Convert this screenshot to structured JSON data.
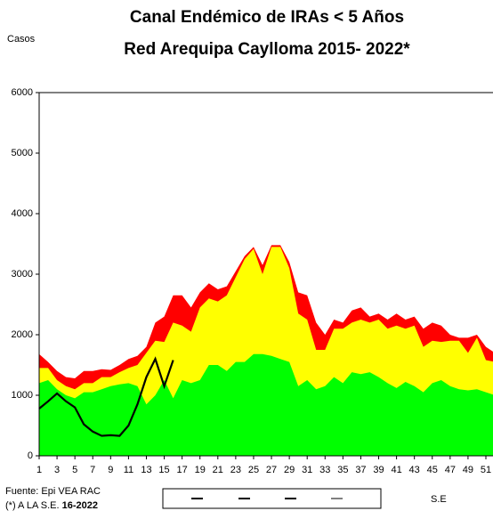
{
  "chart_data": {
    "type": "area",
    "title": [
      "Canal Endémico de IRAs < 5 Años",
      "Red Arequipa Caylloma 2015- 2022*"
    ],
    "y_label": "Casos",
    "x_label": "S.E",
    "source": "Fuente: Epi VEA RAC",
    "note": "(*) A LA S.E.",
    "note_bold": "16-2022",
    "x": [
      1,
      2,
      3,
      4,
      5,
      6,
      7,
      8,
      9,
      10,
      11,
      12,
      13,
      14,
      15,
      16,
      17,
      18,
      19,
      20,
      21,
      22,
      23,
      24,
      25,
      26,
      27,
      28,
      29,
      30,
      31,
      32,
      33,
      34,
      35,
      36,
      37,
      38,
      39,
      40,
      41,
      42,
      43,
      44,
      45,
      46,
      47,
      48,
      49,
      50,
      51,
      52
    ],
    "xlim": [
      1,
      52
    ],
    "xticks": [
      1,
      3,
      5,
      7,
      9,
      11,
      13,
      15,
      17,
      19,
      21,
      23,
      25,
      27,
      29,
      31,
      33,
      35,
      37,
      39,
      41,
      43,
      45,
      47,
      49,
      51
    ],
    "ylim": [
      0,
      6000
    ],
    "yticks": [
      0,
      1000,
      2000,
      3000,
      4000,
      5000,
      6000
    ],
    "series": [
      {
        "color": "#ff0000",
        "values": [
          1680,
          1550,
          1400,
          1300,
          1280,
          1400,
          1400,
          1430,
          1420,
          1500,
          1600,
          1650,
          1800,
          2200,
          2300,
          2650,
          2650,
          2450,
          2700,
          2850,
          2750,
          2800,
          3050,
          3300,
          3450,
          3150,
          3480,
          3480,
          3200,
          2700,
          2650,
          2200,
          2000,
          2250,
          2200,
          2400,
          2450,
          2300,
          2350,
          2250,
          2350,
          2250,
          2300,
          2100,
          2200,
          2150,
          2000,
          1950,
          1950,
          2000,
          1800,
          1700
        ]
      },
      {
        "color": "#ffff00",
        "values": [
          1450,
          1450,
          1250,
          1150,
          1100,
          1200,
          1200,
          1300,
          1300,
          1380,
          1450,
          1500,
          1700,
          1900,
          1880,
          2200,
          2150,
          2050,
          2450,
          2600,
          2550,
          2650,
          2950,
          3250,
          3420,
          3000,
          3450,
          3450,
          3100,
          2350,
          2250,
          1750,
          1750,
          2100,
          2100,
          2200,
          2250,
          2200,
          2250,
          2100,
          2150,
          2100,
          2150,
          1800,
          1900,
          1880,
          1900,
          1900,
          1700,
          1950,
          1580,
          1550
        ]
      },
      {
        "color": "#00ff00",
        "values": [
          1200,
          1250,
          1100,
          1000,
          950,
          1050,
          1050,
          1100,
          1150,
          1180,
          1200,
          1150,
          850,
          1000,
          1250,
          950,
          1250,
          1200,
          1250,
          1500,
          1500,
          1400,
          1550,
          1550,
          1680,
          1680,
          1650,
          1600,
          1550,
          1150,
          1250,
          1100,
          1150,
          1300,
          1200,
          1380,
          1350,
          1380,
          1300,
          1200,
          1120,
          1220,
          1150,
          1050,
          1200,
          1250,
          1150,
          1100,
          1080,
          1100,
          1050,
          1000
        ]
      },
      {
        "color": "#000000",
        "kind": "line",
        "values": [
          780,
          900,
          1030,
          900,
          800,
          520,
          400,
          330,
          340,
          330,
          500,
          850,
          1300,
          1600,
          1150,
          1580,
          null,
          null,
          null,
          null,
          null,
          null,
          null,
          null,
          null,
          null,
          null,
          null,
          null,
          null,
          null,
          null,
          null,
          null,
          null,
          null,
          null,
          null,
          null,
          null,
          null,
          null,
          null,
          null,
          null,
          null,
          null,
          null,
          null,
          null,
          null,
          null
        ]
      }
    ]
  }
}
